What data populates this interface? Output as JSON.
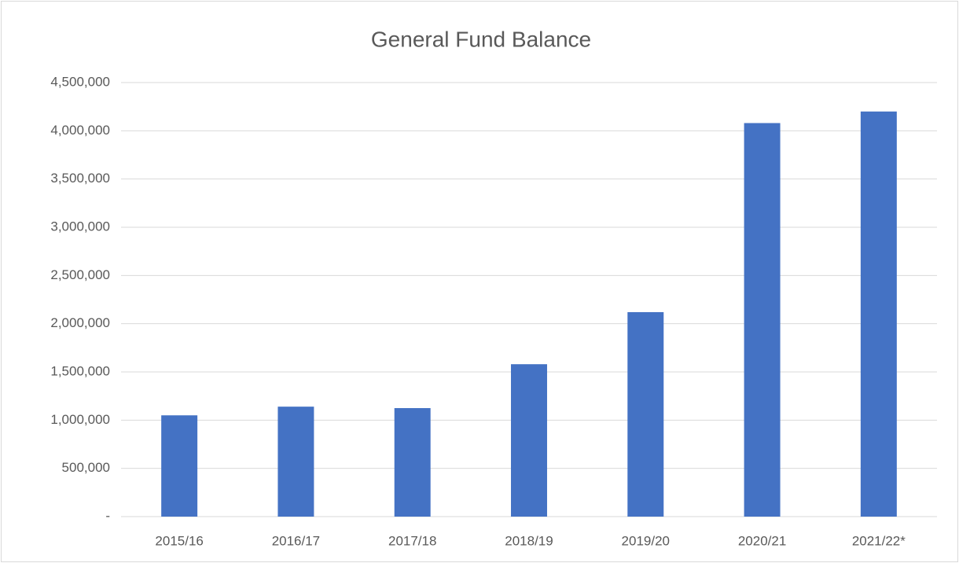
{
  "chart_data": {
    "type": "bar",
    "title": "General Fund Balance",
    "categories": [
      "2015/16",
      "2016/17",
      "2017/18",
      "2018/19",
      "2019/20",
      "2020/21",
      "2021/22*"
    ],
    "values": [
      1050000,
      1140000,
      1125000,
      1580000,
      2120000,
      4080000,
      4200000
    ],
    "color": "#4472c4",
    "ylim": [
      0,
      4500000
    ],
    "yticks": [
      {
        "value": 0,
        "label": "-"
      },
      {
        "value": 500000,
        "label": "500,000"
      },
      {
        "value": 1000000,
        "label": "1,000,000"
      },
      {
        "value": 1500000,
        "label": "1,500,000"
      },
      {
        "value": 2000000,
        "label": "2,000,000"
      },
      {
        "value": 2500000,
        "label": "2,500,000"
      },
      {
        "value": 3000000,
        "label": "3,000,000"
      },
      {
        "value": 3500000,
        "label": "3,500,000"
      },
      {
        "value": 4000000,
        "label": "4,000,000"
      },
      {
        "value": 4500000,
        "label": "4,500,000"
      }
    ],
    "grid": true
  }
}
